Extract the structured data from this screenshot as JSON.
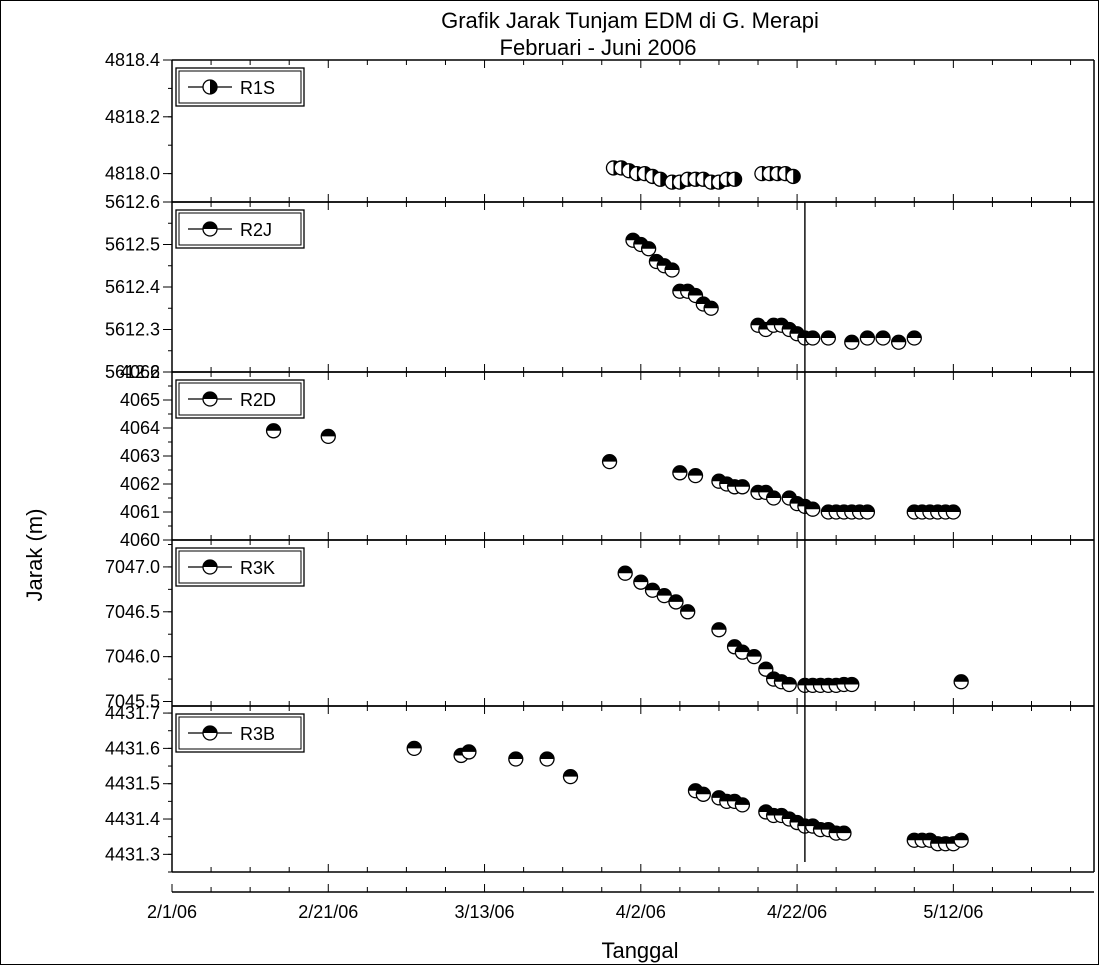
{
  "chart_data": {
    "type": "scatter",
    "title": "Grafik Jarak Tunjam EDM di G. Merapi",
    "subtitle": "Februari - Juni 2006",
    "xlabel": "Tanggal",
    "ylabel": "Jarak (m)",
    "x_tick_labels": [
      "2/1/06",
      "2/21/06",
      "3/13/06",
      "4/2/06",
      "4/22/06",
      "5/12/06"
    ],
    "x_tick_values": [
      0,
      20,
      40,
      60,
      80,
      100
    ],
    "xlim": [
      0,
      118
    ],
    "x_unit": "days from 2/1/06",
    "reference_line_x": 81,
    "legend_position": "top-left",
    "panels": [
      {
        "series": "R1S",
        "marker": "half-filled-right",
        "ylim": [
          4817.9,
          4818.4
        ],
        "yticks": [
          4818.0,
          4818.2,
          4818.4
        ],
        "ytick_labels": [
          "4818.0",
          "4818.2",
          "4818.4"
        ],
        "x": [
          56.5,
          57.5,
          58.5,
          59.5,
          60.5,
          61.5,
          62.5,
          64,
          65,
          66,
          67,
          68,
          69,
          70,
          71,
          72,
          75.5,
          76.5,
          77.5,
          78.5,
          79.5
        ],
        "y": [
          4818.02,
          4818.02,
          4818.01,
          4818.0,
          4818.0,
          4817.99,
          4817.98,
          4817.97,
          4817.97,
          4817.98,
          4817.98,
          4817.98,
          4817.97,
          4817.97,
          4817.98,
          4817.98,
          4818.0,
          4818.0,
          4818.0,
          4818.0,
          4817.99
        ]
      },
      {
        "series": "R2J",
        "marker": "half-filled-top",
        "ylim": [
          5612.2,
          5612.6
        ],
        "yticks": [
          5612.2,
          5612.3,
          5612.4,
          5612.5,
          5612.6
        ],
        "ytick_labels": [
          "5612.2",
          "5612.3",
          "5612.4",
          "5612.5",
          "5612.6"
        ],
        "x": [
          59,
          60,
          61,
          62,
          63,
          64,
          65,
          66,
          67,
          68,
          69,
          75,
          76,
          77,
          78,
          79,
          80,
          81,
          82,
          84,
          87,
          89,
          91,
          93,
          95
        ],
        "y": [
          5612.51,
          5612.5,
          5612.49,
          5612.46,
          5612.45,
          5612.44,
          5612.39,
          5612.39,
          5612.38,
          5612.36,
          5612.35,
          5612.31,
          5612.3,
          5612.31,
          5612.31,
          5612.3,
          5612.29,
          5612.28,
          5612.28,
          5612.28,
          5612.27,
          5612.28,
          5612.28,
          5612.27,
          5612.28
        ]
      },
      {
        "series": "R2D",
        "marker": "half-filled-top",
        "ylim": [
          4060,
          4066
        ],
        "yticks": [
          4060,
          4061,
          4062,
          4063,
          4064,
          4065,
          4066
        ],
        "ytick_labels": [
          "4060",
          "4061",
          "4062",
          "4063",
          "4064",
          "4065",
          "4066"
        ],
        "x": [
          13,
          20,
          56,
          65,
          67,
          70,
          71,
          72,
          73,
          75,
          76,
          77,
          79,
          80,
          81,
          82,
          84,
          85,
          86,
          87,
          88,
          89,
          95,
          96,
          97,
          98,
          99,
          100
        ],
        "y": [
          4063.9,
          4063.7,
          4062.8,
          4062.4,
          4062.3,
          4062.1,
          4062.0,
          4061.9,
          4061.9,
          4061.7,
          4061.7,
          4061.5,
          4061.5,
          4061.3,
          4061.2,
          4061.1,
          4061.0,
          4061.0,
          4061.0,
          4061.0,
          4061.0,
          4061.0,
          4061.0,
          4061.0,
          4061.0,
          4061.0,
          4061.0,
          4061.0
        ]
      },
      {
        "series": "R3K",
        "marker": "half-filled-top",
        "ylim": [
          7045.45,
          7047.3
        ],
        "yticks": [
          7045.5,
          7046.0,
          7046.5,
          7047.0
        ],
        "ytick_labels": [
          "7045.5",
          "7046.0",
          "7046.5",
          "7047.0"
        ],
        "x": [
          58,
          60,
          61.5,
          63,
          64.5,
          66,
          70,
          72,
          73,
          74.5,
          76,
          77,
          78,
          79,
          81,
          82,
          83,
          84,
          85,
          86,
          87,
          101
        ],
        "y": [
          7046.93,
          7046.83,
          7046.74,
          7046.68,
          7046.61,
          7046.5,
          7046.3,
          7046.11,
          7046.05,
          7046.0,
          7045.86,
          7045.75,
          7045.72,
          7045.69,
          7045.68,
          7045.68,
          7045.68,
          7045.68,
          7045.68,
          7045.69,
          7045.69,
          7045.72
        ]
      },
      {
        "series": "R3B",
        "marker": "half-filled-top",
        "ylim": [
          4431.25,
          4431.72
        ],
        "yticks": [
          4431.3,
          4431.4,
          4431.5,
          4431.6,
          4431.7
        ],
        "ytick_labels": [
          "4431.3",
          "4431.4",
          "4431.5",
          "4431.6",
          "4431.7"
        ],
        "x": [
          31,
          37,
          38,
          44,
          48,
          51,
          67,
          68,
          70,
          71,
          72,
          73,
          76,
          77,
          78,
          79,
          80,
          81,
          82,
          83,
          84,
          85,
          86,
          95,
          96,
          97,
          98,
          99,
          100,
          101
        ],
        "y": [
          4431.6,
          4431.58,
          4431.59,
          4431.57,
          4431.57,
          4431.52,
          4431.48,
          4431.47,
          4431.46,
          4431.45,
          4431.45,
          4431.44,
          4431.42,
          4431.41,
          4431.41,
          4431.4,
          4431.39,
          4431.38,
          4431.38,
          4431.37,
          4431.37,
          4431.36,
          4431.36,
          4431.34,
          4431.34,
          4431.34,
          4431.33,
          4431.33,
          4431.33,
          4431.34
        ]
      }
    ]
  }
}
